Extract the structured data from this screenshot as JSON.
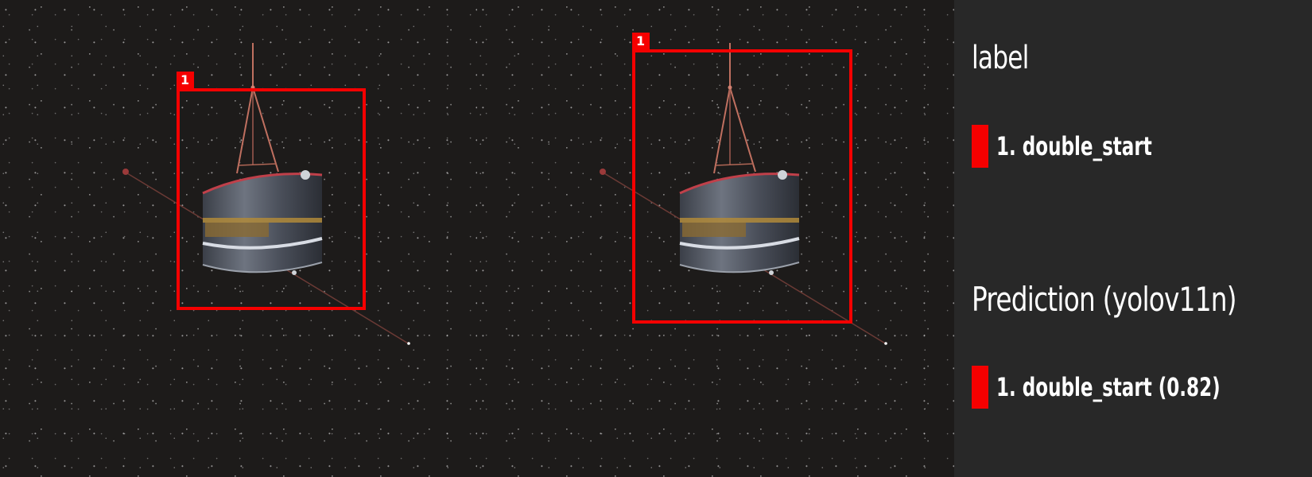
{
  "panels": {
    "label": {
      "boxes": [
        {
          "tag": "1",
          "class_name": "double_start"
        }
      ]
    },
    "prediction": {
      "boxes": [
        {
          "tag": "1",
          "class_name": "double_start"
        }
      ]
    }
  },
  "legend": {
    "label_heading": "label",
    "label_items": [
      {
        "text": "1. double_start"
      }
    ],
    "prediction_heading": "Prediction (yolov11n)",
    "prediction_items": [
      {
        "text": "1. double_start (0.82)"
      }
    ]
  },
  "colors": {
    "box": "#f50000",
    "background": "#1c1a19",
    "legend_background": "#282828",
    "legend_text": "#ffffff"
  },
  "icons": {
    "satellite": "satellite-icon",
    "swatch": "red-swatch-icon"
  }
}
